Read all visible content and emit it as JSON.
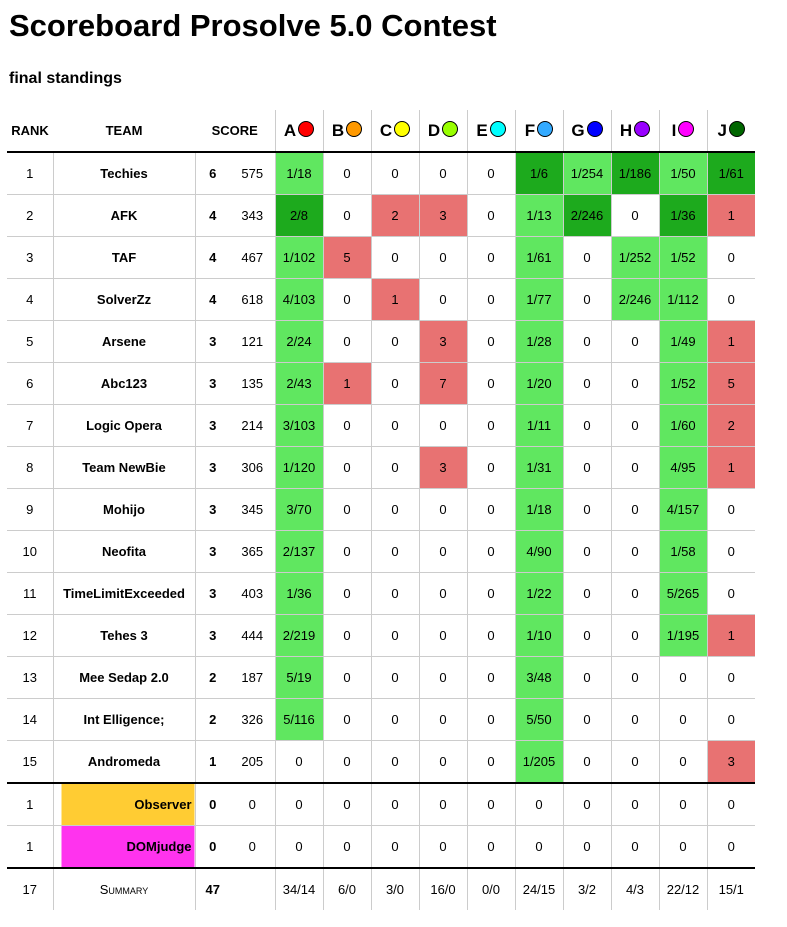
{
  "header": {
    "title": "Scoreboard Prosolve 5.0 Contest",
    "subtitle": "final standings"
  },
  "columns": {
    "rank": "RANK",
    "team": "TEAM",
    "score": "SCORE"
  },
  "problems": [
    {
      "label": "A",
      "color": "#ff0000"
    },
    {
      "label": "B",
      "color": "#ff9900"
    },
    {
      "label": "C",
      "color": "#ffff00"
    },
    {
      "label": "D",
      "color": "#99ff00"
    },
    {
      "label": "E",
      "color": "#00ffff"
    },
    {
      "label": "F",
      "color": "#33aaff"
    },
    {
      "label": "G",
      "color": "#0000ff"
    },
    {
      "label": "H",
      "color": "#9900ff"
    },
    {
      "label": "I",
      "color": "#ff00ff"
    },
    {
      "label": "J",
      "color": "#006600"
    }
  ],
  "status_colors": {
    "solved": "#60e760",
    "first": "#1daa1d",
    "failed": "#e87272"
  },
  "teams": [
    {
      "rank": "1",
      "name": "Techies",
      "solved": "6",
      "penalty": "575",
      "cells": [
        [
          "1/18",
          "s"
        ],
        [
          "0",
          ""
        ],
        [
          "0",
          ""
        ],
        [
          "0",
          ""
        ],
        [
          "0",
          ""
        ],
        [
          "1/6",
          "f"
        ],
        [
          "1/254",
          "s"
        ],
        [
          "1/186",
          "f"
        ],
        [
          "1/50",
          "s"
        ],
        [
          "1/61",
          "f"
        ]
      ]
    },
    {
      "rank": "2",
      "name": "AFK",
      "solved": "4",
      "penalty": "343",
      "cells": [
        [
          "2/8",
          "f"
        ],
        [
          "0",
          ""
        ],
        [
          "2",
          "x"
        ],
        [
          "3",
          "x"
        ],
        [
          "0",
          ""
        ],
        [
          "1/13",
          "s"
        ],
        [
          "2/246",
          "f"
        ],
        [
          "0",
          ""
        ],
        [
          "1/36",
          "f"
        ],
        [
          "1",
          "x"
        ]
      ]
    },
    {
      "rank": "3",
      "name": "TAF",
      "solved": "4",
      "penalty": "467",
      "cells": [
        [
          "1/102",
          "s"
        ],
        [
          "5",
          "x"
        ],
        [
          "0",
          ""
        ],
        [
          "0",
          ""
        ],
        [
          "0",
          ""
        ],
        [
          "1/61",
          "s"
        ],
        [
          "0",
          ""
        ],
        [
          "1/252",
          "s"
        ],
        [
          "1/52",
          "s"
        ],
        [
          "0",
          ""
        ]
      ]
    },
    {
      "rank": "4",
      "name": "SolverZz",
      "solved": "4",
      "penalty": "618",
      "cells": [
        [
          "4/103",
          "s"
        ],
        [
          "0",
          ""
        ],
        [
          "1",
          "x"
        ],
        [
          "0",
          ""
        ],
        [
          "0",
          ""
        ],
        [
          "1/77",
          "s"
        ],
        [
          "0",
          ""
        ],
        [
          "2/246",
          "s"
        ],
        [
          "1/112",
          "s"
        ],
        [
          "0",
          ""
        ]
      ]
    },
    {
      "rank": "5",
      "name": "Arsene",
      "solved": "3",
      "penalty": "121",
      "cells": [
        [
          "2/24",
          "s"
        ],
        [
          "0",
          ""
        ],
        [
          "0",
          ""
        ],
        [
          "3",
          "x"
        ],
        [
          "0",
          ""
        ],
        [
          "1/28",
          "s"
        ],
        [
          "0",
          ""
        ],
        [
          "0",
          ""
        ],
        [
          "1/49",
          "s"
        ],
        [
          "1",
          "x"
        ]
      ]
    },
    {
      "rank": "6",
      "name": "Abc123",
      "solved": "3",
      "penalty": "135",
      "cells": [
        [
          "2/43",
          "s"
        ],
        [
          "1",
          "x"
        ],
        [
          "0",
          ""
        ],
        [
          "7",
          "x"
        ],
        [
          "0",
          ""
        ],
        [
          "1/20",
          "s"
        ],
        [
          "0",
          ""
        ],
        [
          "0",
          ""
        ],
        [
          "1/52",
          "s"
        ],
        [
          "5",
          "x"
        ]
      ]
    },
    {
      "rank": "7",
      "name": "Logic Opera",
      "solved": "3",
      "penalty": "214",
      "cells": [
        [
          "3/103",
          "s"
        ],
        [
          "0",
          ""
        ],
        [
          "0",
          ""
        ],
        [
          "0",
          ""
        ],
        [
          "0",
          ""
        ],
        [
          "1/11",
          "s"
        ],
        [
          "0",
          ""
        ],
        [
          "0",
          ""
        ],
        [
          "1/60",
          "s"
        ],
        [
          "2",
          "x"
        ]
      ]
    },
    {
      "rank": "8",
      "name": "Team NewBie",
      "solved": "3",
      "penalty": "306",
      "cells": [
        [
          "1/120",
          "s"
        ],
        [
          "0",
          ""
        ],
        [
          "0",
          ""
        ],
        [
          "3",
          "x"
        ],
        [
          "0",
          ""
        ],
        [
          "1/31",
          "s"
        ],
        [
          "0",
          ""
        ],
        [
          "0",
          ""
        ],
        [
          "4/95",
          "s"
        ],
        [
          "1",
          "x"
        ]
      ]
    },
    {
      "rank": "9",
      "name": "Mohijo",
      "solved": "3",
      "penalty": "345",
      "cells": [
        [
          "3/70",
          "s"
        ],
        [
          "0",
          ""
        ],
        [
          "0",
          ""
        ],
        [
          "0",
          ""
        ],
        [
          "0",
          ""
        ],
        [
          "1/18",
          "s"
        ],
        [
          "0",
          ""
        ],
        [
          "0",
          ""
        ],
        [
          "4/157",
          "s"
        ],
        [
          "0",
          ""
        ]
      ]
    },
    {
      "rank": "10",
      "name": "Neofita",
      "solved": "3",
      "penalty": "365",
      "cells": [
        [
          "2/137",
          "s"
        ],
        [
          "0",
          ""
        ],
        [
          "0",
          ""
        ],
        [
          "0",
          ""
        ],
        [
          "0",
          ""
        ],
        [
          "4/90",
          "s"
        ],
        [
          "0",
          ""
        ],
        [
          "0",
          ""
        ],
        [
          "1/58",
          "s"
        ],
        [
          "0",
          ""
        ]
      ]
    },
    {
      "rank": "11",
      "name": "TimeLimitExceeded",
      "solved": "3",
      "penalty": "403",
      "cells": [
        [
          "1/36",
          "s"
        ],
        [
          "0",
          ""
        ],
        [
          "0",
          ""
        ],
        [
          "0",
          ""
        ],
        [
          "0",
          ""
        ],
        [
          "1/22",
          "s"
        ],
        [
          "0",
          ""
        ],
        [
          "0",
          ""
        ],
        [
          "5/265",
          "s"
        ],
        [
          "0",
          ""
        ]
      ]
    },
    {
      "rank": "12",
      "name": "Tehes 3",
      "solved": "3",
      "penalty": "444",
      "cells": [
        [
          "2/219",
          "s"
        ],
        [
          "0",
          ""
        ],
        [
          "0",
          ""
        ],
        [
          "0",
          ""
        ],
        [
          "0",
          ""
        ],
        [
          "1/10",
          "s"
        ],
        [
          "0",
          ""
        ],
        [
          "0",
          ""
        ],
        [
          "1/195",
          "s"
        ],
        [
          "1",
          "x"
        ]
      ]
    },
    {
      "rank": "13",
      "name": "Mee Sedap 2.0",
      "solved": "2",
      "penalty": "187",
      "cells": [
        [
          "5/19",
          "s"
        ],
        [
          "0",
          ""
        ],
        [
          "0",
          ""
        ],
        [
          "0",
          ""
        ],
        [
          "0",
          ""
        ],
        [
          "3/48",
          "s"
        ],
        [
          "0",
          ""
        ],
        [
          "0",
          ""
        ],
        [
          "0",
          ""
        ],
        [
          "0",
          ""
        ]
      ]
    },
    {
      "rank": "14",
      "name": "Int Elligence;",
      "solved": "2",
      "penalty": "326",
      "cells": [
        [
          "5/116",
          "s"
        ],
        [
          "0",
          ""
        ],
        [
          "0",
          ""
        ],
        [
          "0",
          ""
        ],
        [
          "0",
          ""
        ],
        [
          "5/50",
          "s"
        ],
        [
          "0",
          ""
        ],
        [
          "0",
          ""
        ],
        [
          "0",
          ""
        ],
        [
          "0",
          ""
        ]
      ]
    },
    {
      "rank": "15",
      "name": "Andromeda",
      "solved": "1",
      "penalty": "205",
      "cells": [
        [
          "0",
          ""
        ],
        [
          "0",
          ""
        ],
        [
          "0",
          ""
        ],
        [
          "0",
          ""
        ],
        [
          "0",
          ""
        ],
        [
          "1/205",
          "s"
        ],
        [
          "0",
          ""
        ],
        [
          "0",
          ""
        ],
        [
          "0",
          ""
        ],
        [
          "3",
          "x"
        ]
      ]
    }
  ],
  "special_teams": [
    {
      "rank": "1",
      "name": "Observer",
      "affil_color": "#ffcc33",
      "solved": "0",
      "penalty": "0",
      "cells": [
        "0",
        "0",
        "0",
        "0",
        "0",
        "0",
        "0",
        "0",
        "0",
        "0"
      ]
    },
    {
      "rank": "1",
      "name": "DOMjudge",
      "affil_color": "#ff33ee",
      "solved": "0",
      "penalty": "0",
      "cells": [
        "0",
        "0",
        "0",
        "0",
        "0",
        "0",
        "0",
        "0",
        "0",
        "0"
      ]
    }
  ],
  "summary": {
    "rank": "17",
    "label": "Summary",
    "solved": "47",
    "cells": [
      "34/14",
      "6/0",
      "3/0",
      "16/0",
      "0/0",
      "24/15",
      "3/2",
      "4/3",
      "22/12",
      "15/1"
    ]
  }
}
